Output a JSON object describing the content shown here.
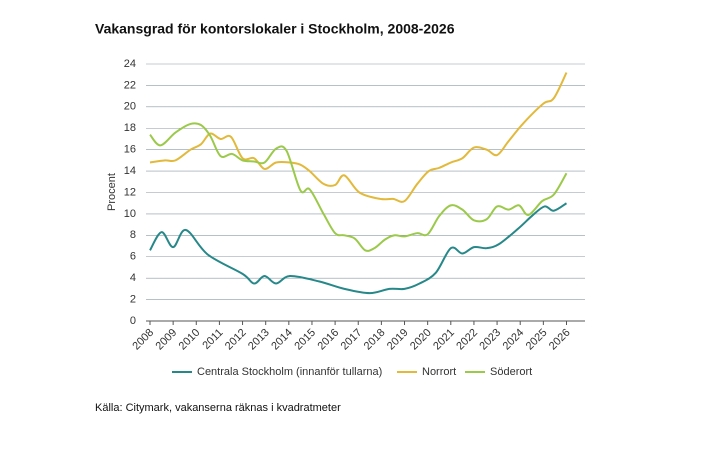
{
  "chart_data": {
    "type": "line",
    "title": "Vakansgrad för kontorslokaler i Stockholm, 2008-2026",
    "ylabel": "Procent",
    "source": "Källa: Citymark, vakanserna räknas i kvadratmeter",
    "xlim": [
      2008,
      2026.8
    ],
    "xticks": [
      2008,
      2009,
      2010,
      2011,
      2012,
      2013,
      2014,
      2015,
      2016,
      2017,
      2018,
      2019,
      2020,
      2021,
      2022,
      2023,
      2024,
      2025,
      2026
    ],
    "ylim": [
      0,
      24
    ],
    "yticks": [
      0,
      2,
      4,
      6,
      8,
      10,
      12,
      14,
      16,
      18,
      20,
      22,
      24
    ],
    "grid": true,
    "legend": "bottom",
    "series": [
      {
        "name": "Centrala Stockholm (innanför tullarna)",
        "color": "#27888a",
        "x": [
          2008,
          2008.5,
          2009,
          2009.55,
          2010.5,
          2012,
          2012.5,
          2012.95,
          2013.45,
          2014.05,
          2015.3,
          2016.4,
          2017.5,
          2018.35,
          2019,
          2019.65,
          2020.35,
          2021,
          2021.5,
          2022,
          2022.55,
          2023.1,
          2023.95,
          2024.5,
          2025.05,
          2025.45,
          2026
        ],
        "values": [
          6.6,
          8.3,
          6.9,
          8.5,
          6.2,
          4.4,
          3.5,
          4.2,
          3.5,
          4.2,
          3.7,
          3.0,
          2.6,
          3.0,
          3.0,
          3.5,
          4.5,
          6.8,
          6.3,
          6.9,
          6.8,
          7.2,
          8.7,
          9.8,
          10.7,
          10.3,
          11.0
        ]
      },
      {
        "name": "Norrort",
        "color": "#e2b93b",
        "x": [
          2008,
          2008.65,
          2009.1,
          2009.75,
          2010.2,
          2010.6,
          2011.05,
          2011.5,
          2012,
          2012.5,
          2012.95,
          2013.45,
          2014.05,
          2014.5,
          2014.9,
          2015.5,
          2016,
          2016.4,
          2017.05,
          2017.95,
          2018.5,
          2019,
          2019.55,
          2020.05,
          2020.5,
          2021,
          2021.5,
          2022,
          2022.55,
          2023,
          2023.5,
          2024.15,
          2025,
          2025.45,
          2026
        ],
        "values": [
          14.8,
          15.0,
          15.0,
          16.0,
          16.5,
          17.5,
          17.0,
          17.2,
          15.2,
          15.2,
          14.2,
          14.8,
          14.8,
          14.6,
          14.0,
          12.8,
          12.7,
          13.6,
          12.0,
          11.4,
          11.4,
          11.2,
          12.8,
          14.0,
          14.3,
          14.8,
          15.2,
          16.2,
          16.0,
          15.5,
          16.8,
          18.5,
          20.3,
          20.8,
          23.2
        ]
      },
      {
        "name": "Söderort",
        "color": "#9bc94a",
        "x": [
          2008,
          2008.45,
          2009.1,
          2009.75,
          2010.2,
          2010.6,
          2011.05,
          2011.55,
          2012,
          2012.5,
          2012.95,
          2013.45,
          2013.9,
          2014.5,
          2014.9,
          2015.5,
          2016,
          2016.4,
          2016.85,
          2017.3,
          2017.7,
          2018.15,
          2018.55,
          2019,
          2019.55,
          2020,
          2020.5,
          2021,
          2021.5,
          2022,
          2022.55,
          2023,
          2023.5,
          2023.95,
          2024.35,
          2024.95,
          2025.45,
          2026
        ],
        "values": [
          17.4,
          16.4,
          17.6,
          18.4,
          18.3,
          17.3,
          15.4,
          15.6,
          15.0,
          14.9,
          14.8,
          16.1,
          15.9,
          12.2,
          12.3,
          10.0,
          8.2,
          8.0,
          7.7,
          6.6,
          6.8,
          7.6,
          8.0,
          7.9,
          8.2,
          8.1,
          9.8,
          10.8,
          10.4,
          9.4,
          9.5,
          10.7,
          10.4,
          10.8,
          9.9,
          11.2,
          11.8,
          13.8
        ]
      }
    ]
  }
}
